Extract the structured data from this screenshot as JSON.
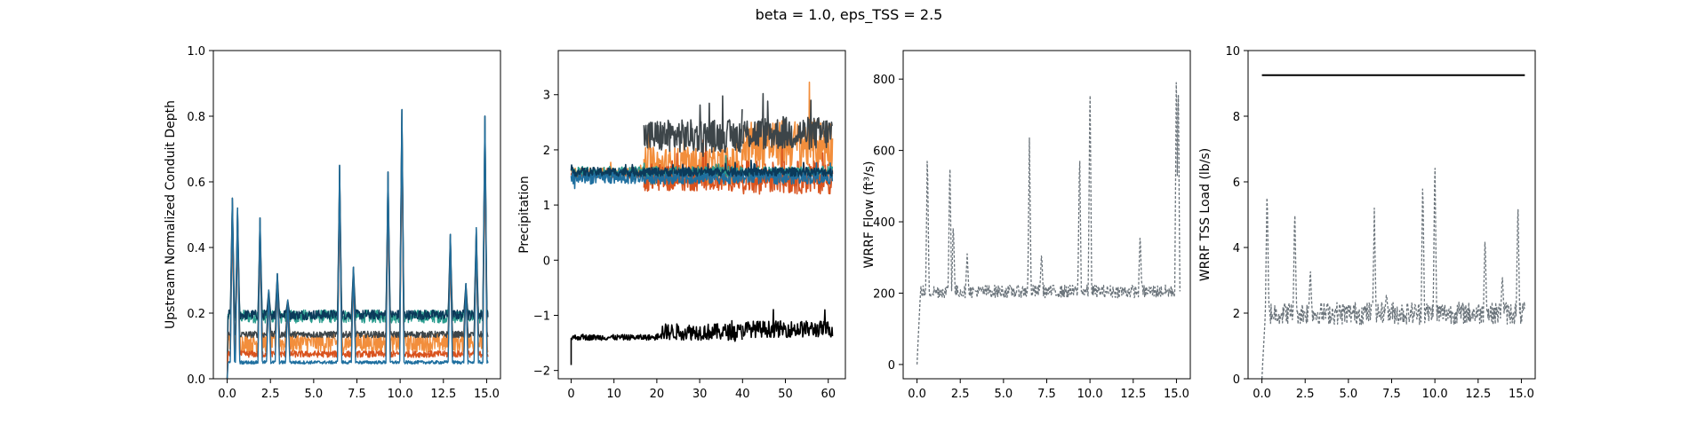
{
  "figure": {
    "suptitle": "beta = 1.0, eps_TSS = 2.5"
  },
  "colors": {
    "orange": "#f28e3c",
    "dark_orange": "#d9531e",
    "teal": "#2a9d8f",
    "blue": "#1f6f9f",
    "navy": "#0b3a5a",
    "charcoal": "#3d4549",
    "gray": "#6b747b",
    "black": "#000000"
  },
  "chart_data": [
    {
      "type": "line",
      "ylabel": "Upstream Normalized Conduit Depth",
      "xlim": [
        -0.8,
        15.8
      ],
      "ylim": [
        0.0,
        1.0
      ],
      "xticks": [
        "0.0",
        "2.5",
        "5.0",
        "7.5",
        "10.0",
        "12.5",
        "15.0"
      ],
      "yticks": [
        "0.0",
        "0.2",
        "0.4",
        "0.6",
        "0.8",
        "1.0"
      ],
      "peaks": [
        [
          0.3,
          0.55
        ],
        [
          0.6,
          0.52
        ],
        [
          1.9,
          0.49
        ],
        [
          2.4,
          0.27
        ],
        [
          2.9,
          0.32
        ],
        [
          3.5,
          0.24
        ],
        [
          6.5,
          0.65
        ],
        [
          7.3,
          0.34
        ],
        [
          9.3,
          0.63
        ],
        [
          10.1,
          0.82
        ],
        [
          12.9,
          0.44
        ],
        [
          13.8,
          0.29
        ],
        [
          14.4,
          0.46
        ],
        [
          14.9,
          0.8
        ]
      ],
      "series": [
        {
          "color": "teal",
          "base": 0.19,
          "amp": 0.02
        },
        {
          "color": "navy",
          "base": 0.195,
          "amp": 0.015
        },
        {
          "color": "orange",
          "base": 0.11,
          "amp": 0.03
        },
        {
          "color": "charcoal",
          "base": 0.135,
          "amp": 0.01
        },
        {
          "color": "dark_orange",
          "base": 0.075,
          "amp": 0.01
        },
        {
          "color": "blue",
          "base": 0.05,
          "amp": 0.005
        }
      ]
    },
    {
      "type": "line",
      "ylabel": "Precipitation",
      "xlim": [
        -3,
        64
      ],
      "ylim": [
        -2.15,
        3.8
      ],
      "xticks": [
        "0",
        "10",
        "20",
        "30",
        "40",
        "50",
        "60"
      ],
      "yticks": [
        "−2",
        "−1",
        "0",
        "1",
        "2",
        "3"
      ],
      "series": [
        {
          "color": "orange",
          "segments": [
            [
              0,
              17,
              1.6,
              0.08
            ],
            [
              17,
              40,
              1.7,
              0.35
            ],
            [
              40,
              61,
              2.1,
              0.45
            ]
          ]
        },
        {
          "color": "dark_orange",
          "segments": [
            [
              0,
              17,
              1.55,
              0.06
            ],
            [
              17,
              40,
              1.5,
              0.25
            ],
            [
              40,
              61,
              1.5,
              0.3
            ]
          ]
        },
        {
          "color": "charcoal",
          "segments": [
            [
              17,
              40,
              2.25,
              0.3
            ],
            [
              40,
              61,
              2.3,
              0.3
            ]
          ]
        },
        {
          "color": "teal",
          "segments": [
            [
              0,
              61,
              1.6,
              0.1
            ]
          ]
        },
        {
          "color": "blue",
          "segments": [
            [
              0,
              61,
              1.5,
              0.12
            ]
          ]
        },
        {
          "color": "navy",
          "segments": [
            [
              0,
              61,
              1.6,
              0.08
            ]
          ]
        },
        {
          "color": "black",
          "segments": [
            [
              0,
              20,
              -1.4,
              0.05
            ],
            [
              20,
              40,
              -1.3,
              0.15
            ],
            [
              40,
              61,
              -1.25,
              0.15
            ]
          ]
        }
      ]
    },
    {
      "type": "line",
      "ylabel": "WRRF Flow (ft³/s)",
      "xlim": [
        -0.8,
        15.8
      ],
      "ylim": [
        -40,
        880
      ],
      "xticks": [
        "0.0",
        "2.5",
        "5.0",
        "7.5",
        "10.0",
        "12.5",
        "15.0"
      ],
      "yticks": [
        "0",
        "200",
        "400",
        "600",
        "800"
      ],
      "base": 205,
      "peaks": [
        [
          0.6,
          610
        ],
        [
          1.9,
          585
        ],
        [
          2.1,
          400
        ],
        [
          2.9,
          310
        ],
        [
          6.5,
          635
        ],
        [
          7.2,
          315
        ],
        [
          9.4,
          610
        ],
        [
          10.0,
          815
        ],
        [
          12.9,
          370
        ],
        [
          15.0,
          855
        ],
        [
          15.1,
          815
        ]
      ],
      "series": [
        {
          "color": "gray",
          "dashed": true
        }
      ]
    },
    {
      "type": "line",
      "ylabel": "WRRF TSS Load (lb/s)",
      "xlim": [
        -0.8,
        15.8
      ],
      "ylim": [
        0,
        10
      ],
      "xticks": [
        "0.0",
        "2.5",
        "5.0",
        "7.5",
        "10.0",
        "12.5",
        "15.0"
      ],
      "yticks": [
        "0",
        "2",
        "4",
        "6",
        "8",
        "10"
      ],
      "base": 2.0,
      "threshold": 9.25,
      "peaks": [
        [
          0.3,
          5.9
        ],
        [
          1.9,
          5.3
        ],
        [
          2.8,
          3.4
        ],
        [
          6.5,
          5.2
        ],
        [
          7.2,
          2.6
        ],
        [
          9.3,
          6.2
        ],
        [
          10.0,
          6.9
        ],
        [
          12.9,
          4.4
        ],
        [
          13.9,
          3.2
        ],
        [
          14.8,
          5.5
        ]
      ],
      "series": [
        {
          "color": "gray",
          "dashed": true
        },
        {
          "color": "black",
          "threshold": true
        }
      ]
    }
  ]
}
